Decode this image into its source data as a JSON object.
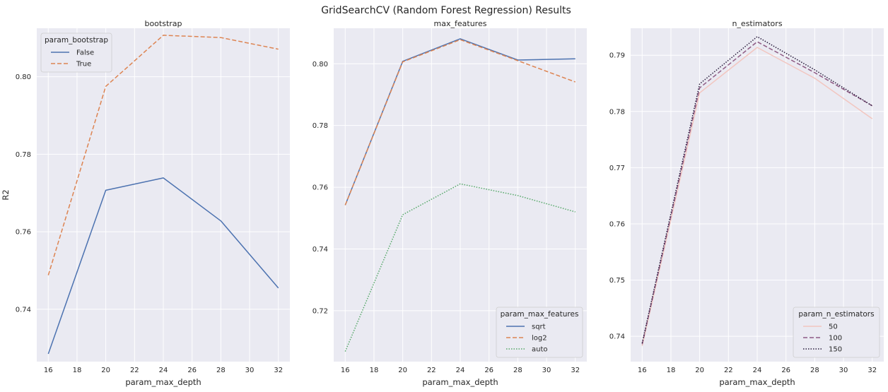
{
  "figure": {
    "suptitle": "GridSearchCV (Random Forest Regression) Results",
    "background": "#eaeaf2",
    "grid_color": "#ffffff",
    "grid": true
  },
  "chart_data": [
    {
      "type": "line",
      "title": "bootstrap",
      "xlabel": "param_max_depth",
      "ylabel": "R2",
      "xlim": [
        15.2,
        32.8
      ],
      "ylim": [
        0.7265,
        0.8125
      ],
      "xticks": [
        16,
        18,
        20,
        22,
        24,
        26,
        28,
        30,
        32
      ],
      "yticks": [
        0.74,
        0.76,
        0.78,
        0.8
      ],
      "x": [
        16,
        20,
        24,
        28,
        32
      ],
      "legend": {
        "title": "param_bootstrap",
        "position": "top-left"
      },
      "series": [
        {
          "name": "False",
          "color": "#4c72b0",
          "dash": "solid",
          "values": [
            0.7285,
            0.7707,
            0.7739,
            0.7628,
            0.7455
          ]
        },
        {
          "name": "True",
          "color": "#dd8452",
          "dash": "dashed",
          "values": [
            0.7488,
            0.7975,
            0.8107,
            0.8101,
            0.8071
          ]
        }
      ]
    },
    {
      "type": "line",
      "title": "max_features",
      "xlabel": "param_max_depth",
      "ylabel": "",
      "xlim": [
        15.2,
        32.8
      ],
      "ylim": [
        0.7035,
        0.8115
      ],
      "xticks": [
        16,
        18,
        20,
        22,
        24,
        26,
        28,
        30,
        32
      ],
      "yticks": [
        0.72,
        0.74,
        0.76,
        0.78,
        0.8
      ],
      "x": [
        16,
        20,
        24,
        28,
        32
      ],
      "legend": {
        "title": "param_max_features",
        "position": "bottom-right"
      },
      "series": [
        {
          "name": "sqrt",
          "color": "#4c72b0",
          "dash": "solid",
          "values": [
            0.7542,
            0.8008,
            0.8081,
            0.8012,
            0.8016
          ]
        },
        {
          "name": "log2",
          "color": "#dd8452",
          "dash": "dashed",
          "values": [
            0.7542,
            0.8006,
            0.8078,
            0.801,
            0.7941
          ]
        },
        {
          "name": "auto",
          "color": "#55a868",
          "dash": "dotted",
          "values": [
            0.7068,
            0.7511,
            0.7611,
            0.7573,
            0.752
          ]
        }
      ]
    },
    {
      "type": "line",
      "title": "n_estimators",
      "xlabel": "param_max_depth",
      "ylabel": "",
      "xlim": [
        15.2,
        32.8
      ],
      "ylim": [
        0.7355,
        0.7948
      ],
      "xticks": [
        16,
        18,
        20,
        22,
        24,
        26,
        28,
        30,
        32
      ],
      "yticks": [
        0.74,
        0.75,
        0.76,
        0.77,
        0.78,
        0.79
      ],
      "x": [
        16,
        20,
        24,
        28,
        32
      ],
      "legend": {
        "title": "param_n_estimators",
        "position": "bottom-right"
      },
      "series": [
        {
          "name": "50",
          "color": "#f2c6c0",
          "dash": "solid",
          "values": [
            0.7383,
            0.7833,
            0.7914,
            0.7859,
            0.7787
          ]
        },
        {
          "name": "100",
          "color": "#8e5b84",
          "dash": "dashed",
          "values": [
            0.7386,
            0.7842,
            0.7924,
            0.7869,
            0.781
          ]
        },
        {
          "name": "150",
          "color": "#2b1e3e",
          "dash": "dotted",
          "values": [
            0.7388,
            0.7849,
            0.7933,
            0.7874,
            0.781
          ]
        }
      ]
    }
  ]
}
